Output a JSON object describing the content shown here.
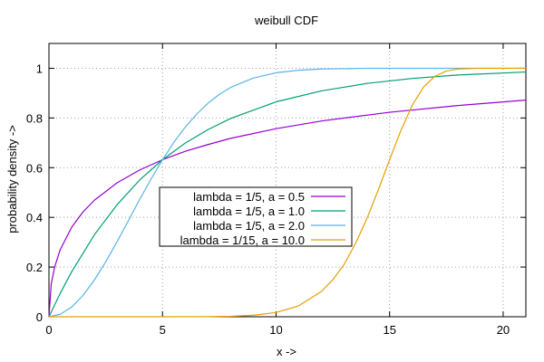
{
  "chart_data": {
    "type": "line",
    "title": "weibull CDF",
    "xlabel": "x ->",
    "ylabel": "probability density ->",
    "xlim": [
      0,
      21
    ],
    "ylim": [
      0,
      1.1
    ],
    "grid": true,
    "legend_position": "center",
    "x_ticks": [
      0,
      5,
      10,
      15,
      20
    ],
    "y_ticks": [
      0,
      0.2,
      0.4,
      0.6,
      0.8,
      1
    ],
    "x_tick_labels": [
      "0",
      "5",
      "10",
      "15",
      "20"
    ],
    "y_tick_labels": [
      "0",
      "0.2",
      "0.4",
      "0.6",
      "0.8",
      "1"
    ],
    "series": [
      {
        "name": "lambda = 1/5, a = 0.5",
        "color": "#9400d3",
        "x": [
          0,
          0.1,
          0.25,
          0.5,
          1,
          1.5,
          2,
          3,
          4,
          5,
          6,
          7,
          8,
          10,
          12,
          15,
          18,
          21
        ],
        "y": [
          0,
          0.132,
          0.2,
          0.271,
          0.36,
          0.422,
          0.469,
          0.539,
          0.591,
          0.632,
          0.666,
          0.693,
          0.718,
          0.757,
          0.788,
          0.823,
          0.85,
          0.872
        ]
      },
      {
        "name": "lambda = 1/5, a = 1.0",
        "color": "#009e73",
        "x": [
          0,
          0.5,
          1,
          2,
          3,
          4,
          5,
          6,
          7,
          8,
          10,
          12,
          14,
          16,
          18,
          21
        ],
        "y": [
          0,
          0.095,
          0.181,
          0.33,
          0.451,
          0.551,
          0.632,
          0.699,
          0.753,
          0.798,
          0.865,
          0.909,
          0.939,
          0.959,
          0.973,
          0.985
        ]
      },
      {
        "name": "lambda = 1/5, a = 2.0",
        "color": "#56b4e9",
        "x": [
          0,
          0.5,
          1,
          1.5,
          2,
          2.5,
          3,
          3.5,
          4,
          4.5,
          5,
          5.5,
          6,
          6.5,
          7,
          7.5,
          8,
          9,
          10,
          11,
          12,
          14,
          16,
          18,
          21
        ],
        "y": [
          0,
          0.01,
          0.039,
          0.086,
          0.148,
          0.221,
          0.302,
          0.387,
          0.473,
          0.555,
          0.632,
          0.702,
          0.763,
          0.815,
          0.859,
          0.895,
          0.923,
          0.961,
          0.982,
          0.992,
          0.997,
          1.0,
          1.0,
          1.0,
          1.0
        ]
      },
      {
        "name": "lambda = 1/15, a = 10.0",
        "color": "#e69f00",
        "x": [
          0,
          5,
          7,
          8,
          9,
          10,
          11,
          12,
          12.5,
          13,
          13.5,
          14,
          14.5,
          15,
          15.5,
          16,
          16.5,
          17,
          17.5,
          18,
          19,
          20,
          21
        ],
        "y": [
          0,
          0.0,
          0.0005,
          0.0019,
          0.006,
          0.017,
          0.044,
          0.102,
          0.149,
          0.211,
          0.295,
          0.395,
          0.51,
          0.632,
          0.75,
          0.852,
          0.925,
          0.968,
          0.989,
          0.997,
          1.0,
          1.0,
          1.0
        ]
      }
    ]
  }
}
